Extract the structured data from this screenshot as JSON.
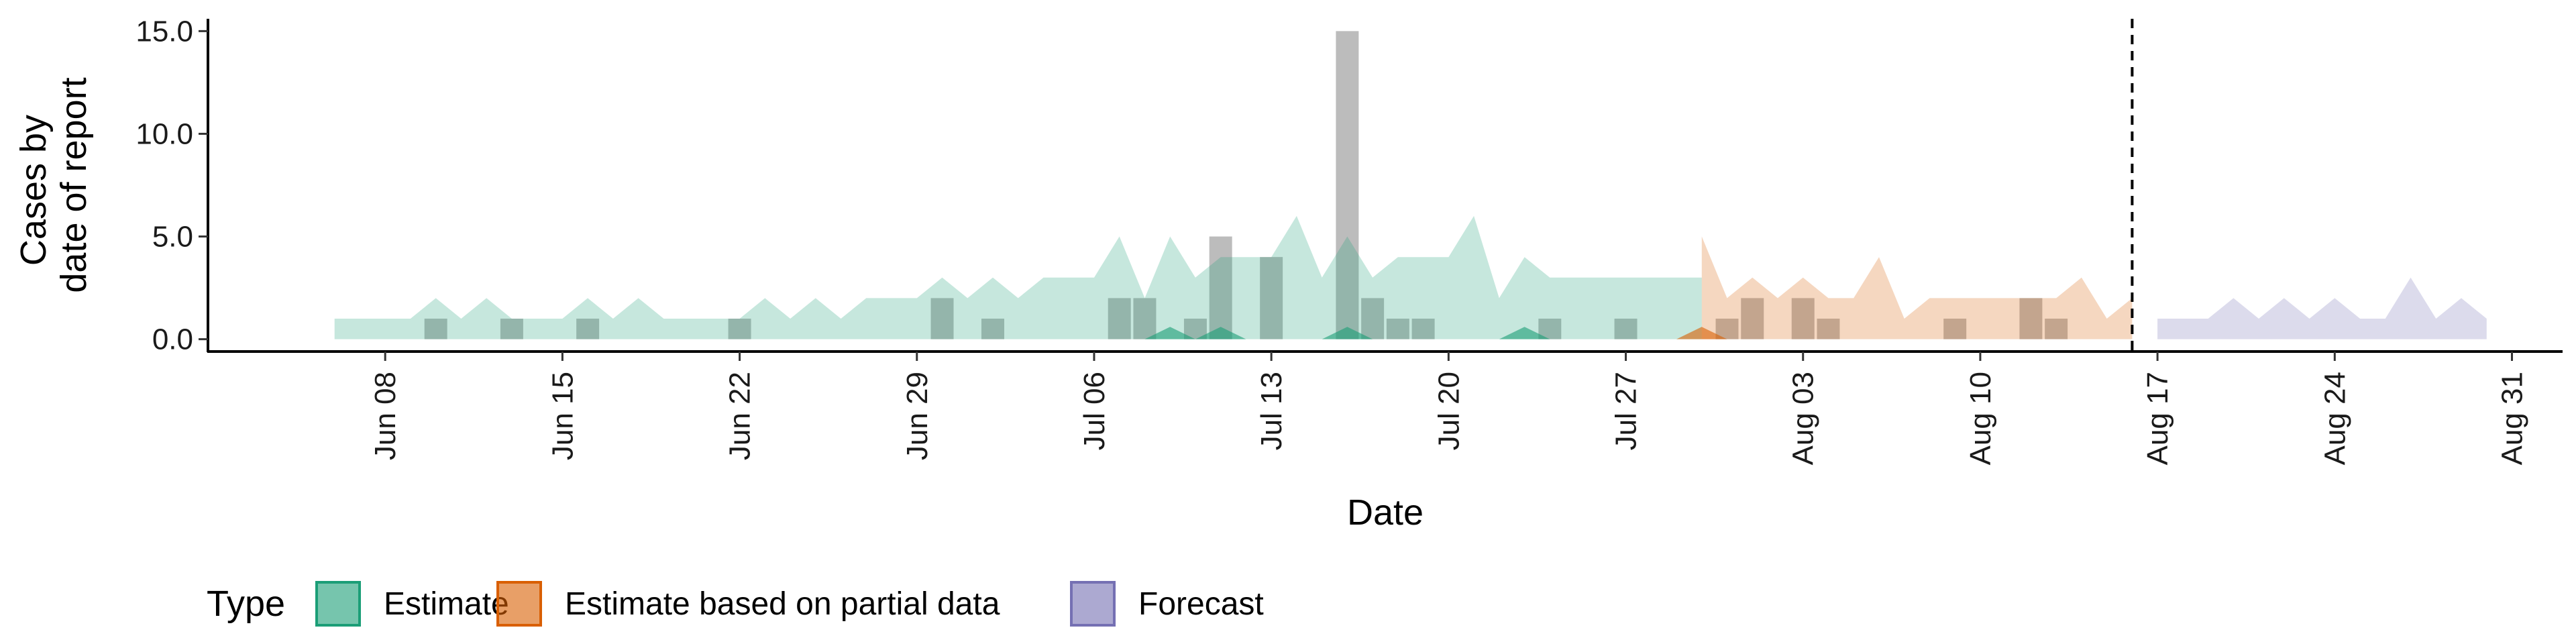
{
  "chart_data": {
    "type": "area",
    "xlabel": "Date",
    "ylabel_lines": [
      "Cases by",
      "date of report"
    ],
    "y_ticks": [
      0,
      5,
      10,
      15
    ],
    "y_tick_labels": [
      "0.0",
      "5.0",
      "10.0",
      "15.0"
    ],
    "ylim": [
      -0.6,
      15.6
    ],
    "xlim": [
      "2020-06-01",
      "2020-09-02"
    ],
    "x_ticks": [
      {
        "date": "2020-06-08",
        "label": "Jun 08"
      },
      {
        "date": "2020-06-15",
        "label": "Jun 15"
      },
      {
        "date": "2020-06-22",
        "label": "Jun 22"
      },
      {
        "date": "2020-06-29",
        "label": "Jun 29"
      },
      {
        "date": "2020-07-06",
        "label": "Jul 06"
      },
      {
        "date": "2020-07-13",
        "label": "Jul 13"
      },
      {
        "date": "2020-07-20",
        "label": "Jul 20"
      },
      {
        "date": "2020-07-27",
        "label": "Jul 27"
      },
      {
        "date": "2020-08-03",
        "label": "Aug 03"
      },
      {
        "date": "2020-08-10",
        "label": "Aug 10"
      },
      {
        "date": "2020-08-17",
        "label": "Aug 17"
      },
      {
        "date": "2020-08-24",
        "label": "Aug 24"
      },
      {
        "date": "2020-08-31",
        "label": "Aug 31"
      }
    ],
    "vline_date": "2020-08-16",
    "grid": false,
    "legend": {
      "title": "Type",
      "position": "bottom",
      "entries": [
        {
          "label": "Estimate",
          "fill": "#1b9e77",
          "stroke": "#1b9e77"
        },
        {
          "label": "Estimate based on partial data",
          "fill": "#d95f02",
          "stroke": "#d95f02"
        },
        {
          "label": "Forecast",
          "fill": "#7570b3",
          "stroke": "#7570b3"
        }
      ]
    },
    "reported_cases": [
      {
        "date": "2020-06-10",
        "value": 1
      },
      {
        "date": "2020-06-13",
        "value": 1
      },
      {
        "date": "2020-06-16",
        "value": 1
      },
      {
        "date": "2020-06-22",
        "value": 1
      },
      {
        "date": "2020-06-30",
        "value": 2
      },
      {
        "date": "2020-07-02",
        "value": 1
      },
      {
        "date": "2020-07-07",
        "value": 2
      },
      {
        "date": "2020-07-08",
        "value": 2
      },
      {
        "date": "2020-07-10",
        "value": 1
      },
      {
        "date": "2020-07-11",
        "value": 5
      },
      {
        "date": "2020-07-13",
        "value": 4
      },
      {
        "date": "2020-07-16",
        "value": 15
      },
      {
        "date": "2020-07-17",
        "value": 2
      },
      {
        "date": "2020-07-18",
        "value": 1
      },
      {
        "date": "2020-07-19",
        "value": 1
      },
      {
        "date": "2020-07-24",
        "value": 1
      },
      {
        "date": "2020-07-27",
        "value": 1
      },
      {
        "date": "2020-07-31",
        "value": 1
      },
      {
        "date": "2020-08-01",
        "value": 2
      },
      {
        "date": "2020-08-03",
        "value": 2
      },
      {
        "date": "2020-08-04",
        "value": 1
      },
      {
        "date": "2020-08-09",
        "value": 1
      },
      {
        "date": "2020-08-12",
        "value": 2
      },
      {
        "date": "2020-08-13",
        "value": 1
      }
    ],
    "series": [
      {
        "type": "Estimate",
        "color": "#1b9e77",
        "start": "2020-06-06",
        "lower": [
          0,
          0,
          0,
          0,
          0,
          0,
          0,
          0,
          0,
          0,
          0,
          0,
          0,
          0,
          0,
          0,
          0,
          0,
          0,
          0,
          0,
          0,
          0,
          0,
          0,
          0,
          0,
          0,
          0,
          0,
          0,
          0,
          0,
          0,
          0,
          0,
          0,
          0,
          0,
          0,
          0,
          0,
          0,
          0,
          0,
          0,
          0,
          0,
          0,
          0,
          0,
          0,
          0,
          0,
          0
        ],
        "upper": [
          1,
          1,
          1,
          1,
          2,
          1,
          2,
          1,
          1,
          1,
          2,
          1,
          2,
          1,
          1,
          1,
          1,
          2,
          1,
          2,
          1,
          2,
          2,
          2,
          3,
          2,
          3,
          2,
          3,
          3,
          3,
          5,
          2,
          5,
          3,
          4,
          4,
          4,
          6,
          3,
          5,
          3,
          4,
          4,
          4,
          6,
          2,
          4,
          3,
          3,
          3,
          3,
          3,
          3,
          3
        ],
        "markers": [
          {
            "date": "2020-07-09",
            "value": 0.6
          },
          {
            "date": "2020-07-11",
            "value": 0.6
          },
          {
            "date": "2020-07-16",
            "value": 0.6
          },
          {
            "date": "2020-07-23",
            "value": 0.6
          }
        ]
      },
      {
        "type": "Estimate based on partial data",
        "color": "#d95f02",
        "start": "2020-07-30",
        "lower": [
          0,
          0,
          0,
          0,
          0,
          0,
          0,
          0,
          0,
          0,
          0,
          0,
          0,
          0,
          0,
          0,
          0,
          0
        ],
        "upper": [
          5,
          2,
          3,
          2,
          3,
          2,
          2,
          4,
          1,
          2,
          2,
          2,
          2,
          2,
          2,
          3,
          1,
          2
        ],
        "markers": [
          {
            "date": "2020-07-30",
            "value": 0.6
          }
        ]
      },
      {
        "type": "Forecast",
        "color": "#7570b3",
        "start": "2020-08-17",
        "lower": [
          0,
          0,
          0,
          0,
          0,
          0,
          0,
          0,
          0,
          0,
          0,
          0,
          0,
          0
        ],
        "upper": [
          1,
          1,
          1,
          2,
          1,
          2,
          1,
          2,
          1,
          1,
          3,
          1,
          2,
          1
        ],
        "markers": []
      }
    ]
  }
}
